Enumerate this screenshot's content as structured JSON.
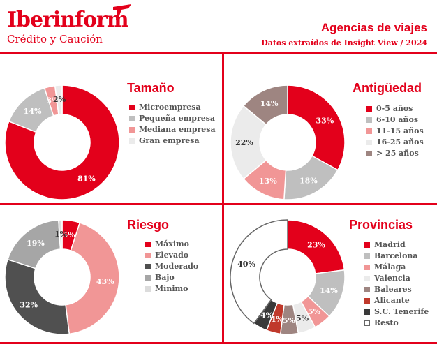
{
  "header": {
    "brand": "Iberinform",
    "tagline": "Crédito y Caución",
    "title": "Agencias de viajes",
    "subtitle": "Datos extraídos de Insight View / 2024"
  },
  "colors": {
    "accent": "#e3001b"
  },
  "chart_data": [
    {
      "type": "pie",
      "title": "Tamaño",
      "series": [
        {
          "name": "Microempresa",
          "value": 81,
          "label": "81%",
          "color": "#e3001b"
        },
        {
          "name": "Pequeña empresa",
          "value": 14,
          "label": "14%",
          "color": "#bfbfbf"
        },
        {
          "name": "Mediana empresa",
          "value": 3,
          "label": "3%",
          "color": "#f19696"
        },
        {
          "name": "Gran empresa",
          "value": 2,
          "label": "2%",
          "color": "#ebebeb"
        }
      ],
      "legend": "right"
    },
    {
      "type": "pie",
      "title": "Antigüedad",
      "series": [
        {
          "name": "0-5 años",
          "value": 33,
          "label": "33%",
          "color": "#e3001b"
        },
        {
          "name": "6-10 años",
          "value": 18,
          "label": "18%",
          "color": "#bfbfbf"
        },
        {
          "name": "11-15 años",
          "value": 13,
          "label": "13%",
          "color": "#f19696"
        },
        {
          "name": "16-25 años",
          "value": 22,
          "label": "22%",
          "color": "#ebebeb"
        },
        {
          "name": "> 25 años",
          "value": 14,
          "label": "14%",
          "color": "#9e8581"
        }
      ],
      "legend": "right"
    },
    {
      "type": "pie",
      "title": "Riesgo",
      "series": [
        {
          "name": "Máximo",
          "value": 5,
          "label": "5%",
          "color": "#e3001b"
        },
        {
          "name": "Elevado",
          "value": 43,
          "label": "43%",
          "color": "#f19696"
        },
        {
          "name": "Moderado",
          "value": 32,
          "label": "32%",
          "color": "#505050"
        },
        {
          "name": "Bajo",
          "value": 19,
          "label": "19%",
          "color": "#a6a6a6"
        },
        {
          "name": "Mínimo",
          "value": 1,
          "label": "1%",
          "color": "#dcdcdc"
        }
      ],
      "legend": "right"
    },
    {
      "type": "pie",
      "title": "Provincias",
      "series": [
        {
          "name": "Madrid",
          "value": 23,
          "label": "23%",
          "color": "#e3001b"
        },
        {
          "name": "Barcelona",
          "value": 14,
          "label": "14%",
          "color": "#bfbfbf"
        },
        {
          "name": "Málaga",
          "value": 5,
          "label": "5%",
          "color": "#f19696"
        },
        {
          "name": "Valencia",
          "value": 5,
          "label": "5%",
          "color": "#ebebeb"
        },
        {
          "name": "Baleares",
          "value": 5,
          "label": "5%",
          "color": "#9e8581"
        },
        {
          "name": "Alicante",
          "value": 4,
          "label": "4%",
          "color": "#c0392b"
        },
        {
          "name": "S.C. Tenerife",
          "value": 4,
          "label": "4%",
          "color": "#3a3a3a"
        },
        {
          "name": "Resto",
          "value": 40,
          "label": "40%",
          "color": "#ffffff"
        }
      ],
      "legend": "right"
    }
  ]
}
